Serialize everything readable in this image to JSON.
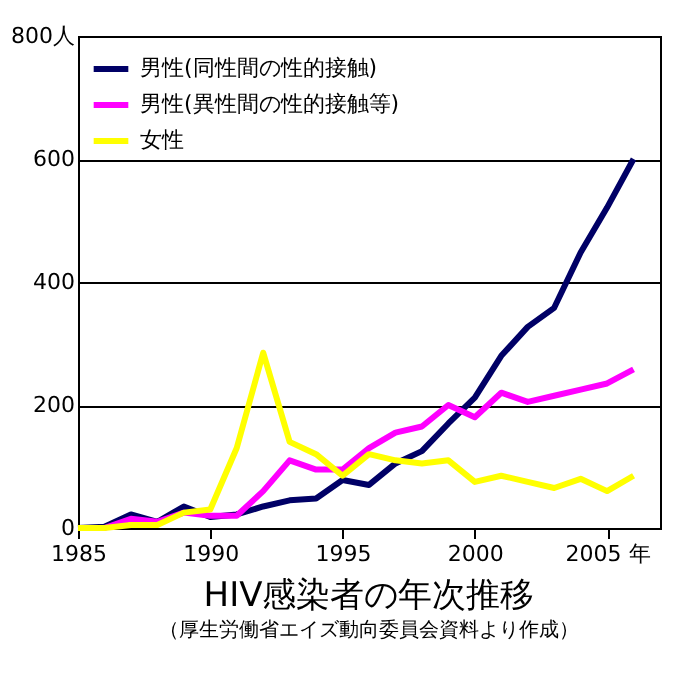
{
  "chart_data": {
    "type": "line",
    "title": "HIV感染者の年次推移",
    "subtitle": "（厚生労働省エイズ動向委員会資料より作成）",
    "x": [
      1985,
      1986,
      1987,
      1988,
      1989,
      1990,
      1991,
      1992,
      1993,
      1994,
      1995,
      1996,
      1997,
      1998,
      1999,
      2000,
      2001,
      2002,
      2003,
      2004,
      2005,
      2006
    ],
    "series": [
      {
        "name": "男性(同性間の性的接触)",
        "color": "#000066",
        "values": [
          0,
          2,
          22,
          10,
          35,
          18,
          22,
          35,
          45,
          48,
          78,
          70,
          105,
          125,
          170,
          212,
          280,
          327,
          358,
          448,
          521,
          600
        ]
      },
      {
        "name": "男性(異性間の性的接触等)",
        "color": "#ff00ff",
        "values": [
          0,
          0,
          15,
          10,
          25,
          20,
          20,
          60,
          110,
          95,
          95,
          130,
          155,
          165,
          200,
          180,
          220,
          205,
          215,
          225,
          235,
          258
        ]
      },
      {
        "name": "女性",
        "color": "#ffff00",
        "values": [
          0,
          0,
          5,
          5,
          25,
          30,
          130,
          285,
          140,
          120,
          85,
          120,
          110,
          105,
          110,
          75,
          85,
          75,
          65,
          80,
          60,
          85
        ]
      }
    ],
    "xlim": [
      1985,
      2007
    ],
    "xticks": [
      1985,
      1990,
      1995,
      2000,
      {
        "value": 2005,
        "label": "2005 年"
      }
    ],
    "ylim": [
      0,
      800
    ],
    "yticks": [
      0,
      200,
      400,
      600,
      {
        "value": 800,
        "label": "800人"
      }
    ],
    "grid": "y",
    "legend": "top left",
    "marker": "none",
    "line_style": "solid"
  }
}
